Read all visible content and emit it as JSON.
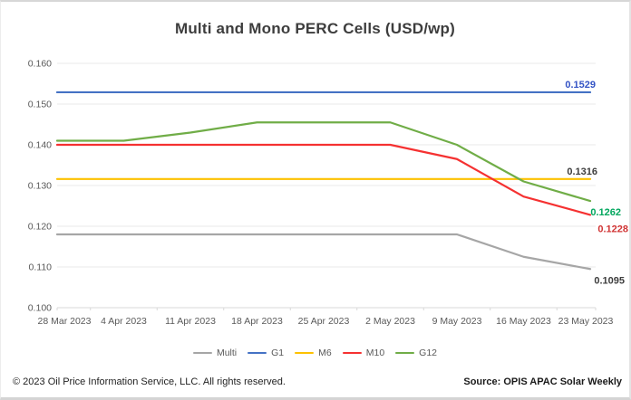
{
  "page": {
    "title": "Multi and Mono PERC Cells (USD/wp)"
  },
  "chart_data": {
    "type": "line",
    "title": "Multi and Mono PERC Cells (USD/wp)",
    "x_labels": [
      "28 Mar 2023",
      "4 Apr 2023",
      "11 Apr 2023",
      "18 Apr 2023",
      "25 Apr 2023",
      "2 May 2023",
      "9 May 2023",
      "16 May 2023",
      "23 May 2023"
    ],
    "ylim": [
      0.1,
      0.16
    ],
    "ytick_step": 0.01,
    "ytick_labels": [
      "0.160",
      "0.150",
      "0.140",
      "0.130",
      "0.120",
      "0.110",
      "0.100"
    ],
    "grid": true,
    "legend_position": "bottom",
    "series": [
      {
        "name": "Multi",
        "color": "#a6a6a6",
        "values": [
          0.118,
          0.118,
          0.118,
          0.118,
          0.118,
          0.118,
          0.118,
          0.1125,
          0.1095
        ],
        "end_label": "0.1095",
        "end_label_color": "#3d3d3d"
      },
      {
        "name": "G1",
        "color": "#4472c4",
        "values": [
          0.1529,
          0.1529,
          0.1529,
          0.1529,
          0.1529,
          0.1529,
          0.1529,
          0.1529,
          0.1529
        ],
        "end_label": "0.1529",
        "end_label_color": "#3353c5"
      },
      {
        "name": "M6",
        "color": "#fdc100",
        "values": [
          0.1316,
          0.1316,
          0.1316,
          0.1316,
          0.1316,
          0.1316,
          0.1316,
          0.1316,
          0.1316
        ],
        "end_label": "0.1316",
        "end_label_color": "#3d3d3d"
      },
      {
        "name": "M10",
        "color": "#f53131",
        "values": [
          0.14,
          0.14,
          0.14,
          0.14,
          0.14,
          0.14,
          0.1365,
          0.1273,
          0.1228
        ],
        "end_label": "0.1228",
        "end_label_color": "#d03434"
      },
      {
        "name": "G12",
        "color": "#70ad47",
        "values": [
          0.141,
          0.141,
          0.143,
          0.1455,
          0.1455,
          0.1455,
          0.14,
          0.131,
          0.1262
        ],
        "end_label": "0.1262",
        "end_label_color": "#00a65d"
      }
    ]
  },
  "footer": {
    "copyright": "© 2023 Oil Price Information Service, LLC. All rights reserved.",
    "source": "Source: OPIS APAC Solar Weekly"
  }
}
